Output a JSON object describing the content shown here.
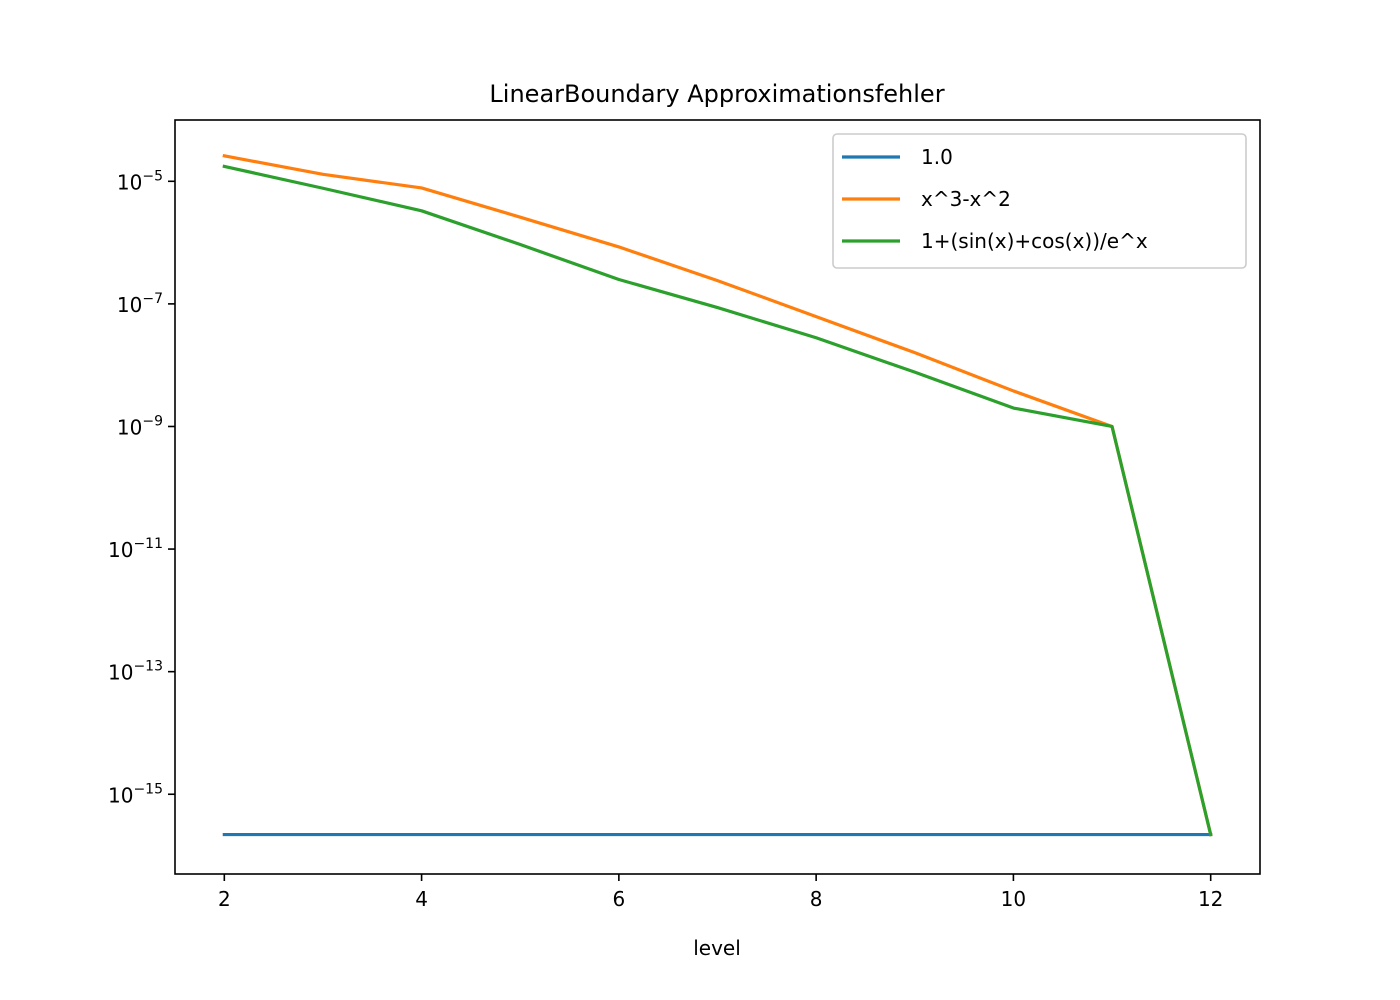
{
  "chart_data": {
    "type": "line",
    "title": "LinearBoundary Approximationsfehler",
    "xlabel": "level",
    "ylabel": "",
    "yscale": "log",
    "xlim": [
      1.5,
      12.5
    ],
    "ylim": [
      5e-17,
      0.0001
    ],
    "xticks": [
      2,
      4,
      6,
      8,
      10,
      12
    ],
    "yticks": [
      {
        "base": "10",
        "exp": "−5",
        "value": 1e-05
      },
      {
        "base": "10",
        "exp": "−7",
        "value": 1e-07
      },
      {
        "base": "10",
        "exp": "−9",
        "value": 1e-09
      },
      {
        "base": "10",
        "exp": "−11",
        "value": 1e-11
      },
      {
        "base": "10",
        "exp": "−13",
        "value": 1e-13
      },
      {
        "base": "10",
        "exp": "−15",
        "value": 1e-15
      }
    ],
    "grid": false,
    "legend_position": "top-right",
    "x": [
      2,
      3,
      4,
      5,
      6,
      7,
      8,
      9,
      10,
      11,
      12
    ],
    "series": [
      {
        "name": "1.0",
        "color": "#1f77b4",
        "values": [
          2.2e-16,
          2.2e-16,
          2.2e-16,
          2.2e-16,
          2.2e-16,
          2.2e-16,
          2.2e-16,
          2.2e-16,
          2.2e-16,
          2.2e-16,
          2.2e-16
        ]
      },
      {
        "name": "x^3-x^2",
        "color": "#ff7f0e",
        "values": [
          2.6e-05,
          1.3e-05,
          7.8e-06,
          2.6e-06,
          8.5e-07,
          2.4e-07,
          6.2e-08,
          1.6e-08,
          3.8e-09,
          1e-09,
          2.2e-16
        ]
      },
      {
        "name": "1+(sin(x)+cos(x))/e^x",
        "color": "#2ca02c",
        "values": [
          1.75e-05,
          7.7e-06,
          3.3e-06,
          9.3e-07,
          2.5e-07,
          8.7e-08,
          2.8e-08,
          7.7e-09,
          2e-09,
          1e-09,
          2.2e-16
        ]
      }
    ]
  }
}
